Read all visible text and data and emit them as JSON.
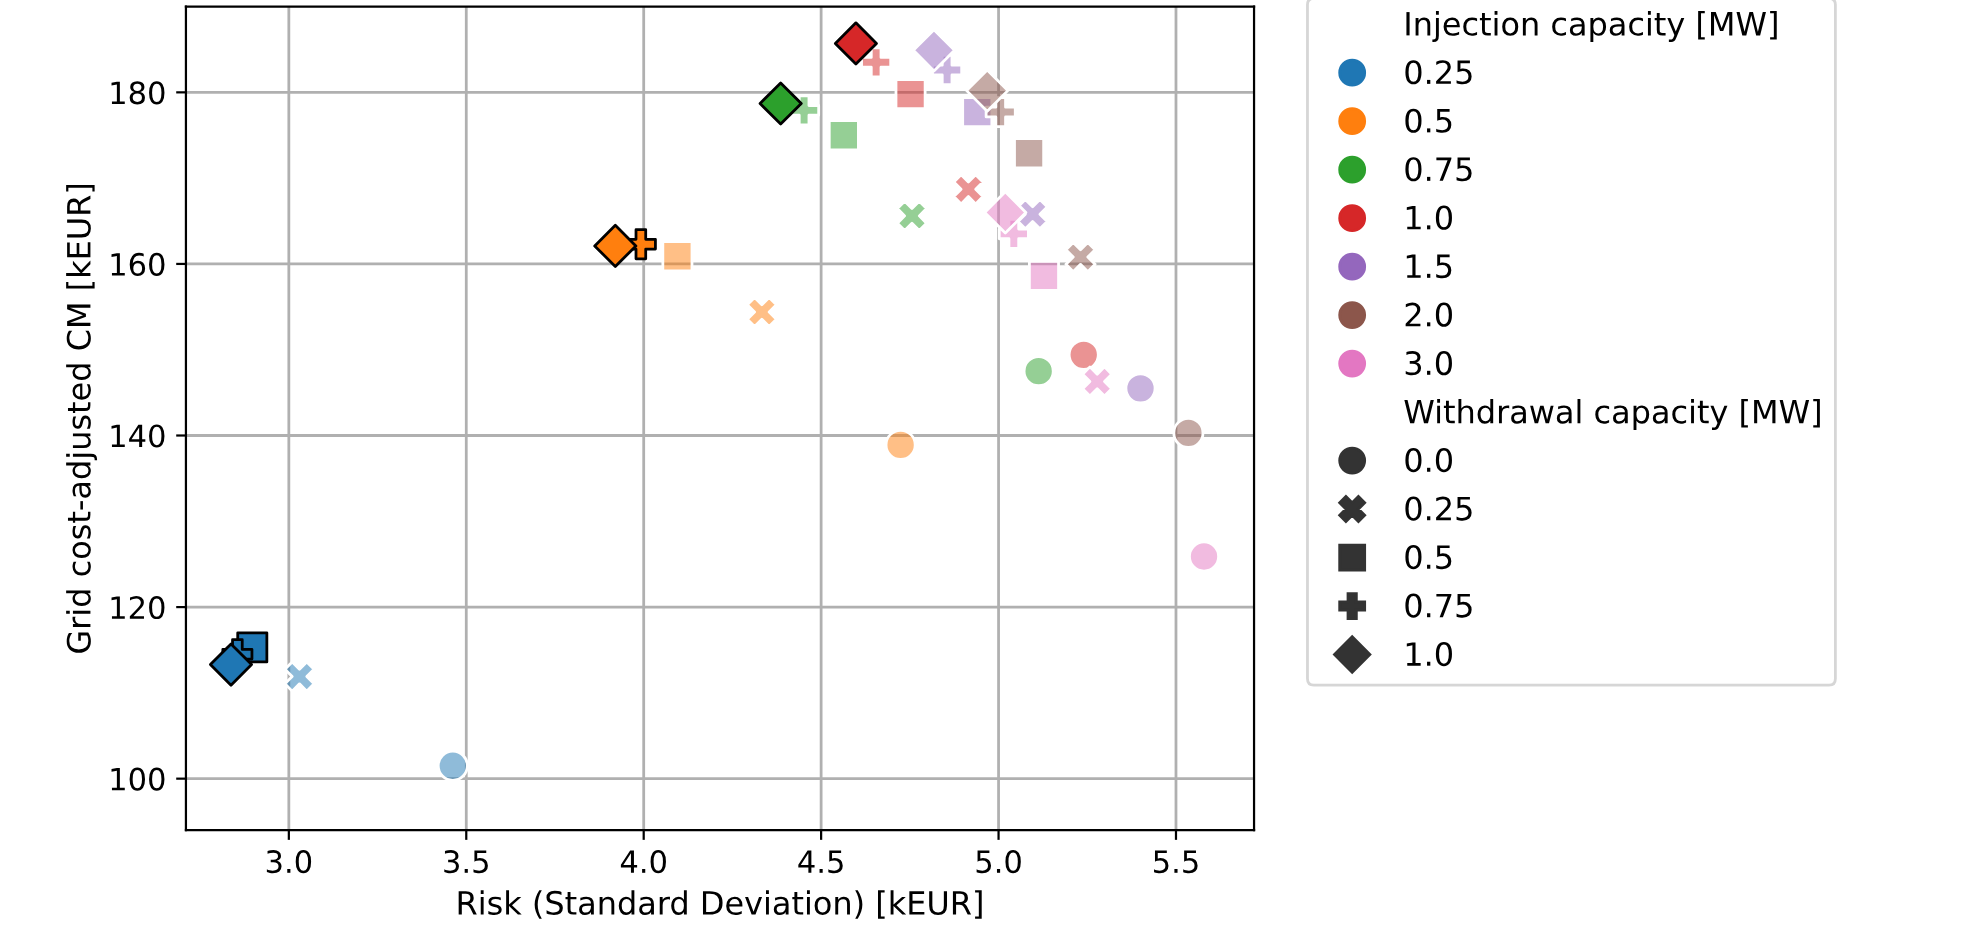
{
  "chart_data": {
    "type": "scatter",
    "xlabel": "Risk (Standard Deviation) [kEUR]",
    "ylabel": "Grid cost-adjusted CM [kEUR]",
    "xlim": [
      2.71,
      5.72
    ],
    "ylim": [
      94,
      190
    ],
    "xticks": [
      {
        "value": 3,
        "label": "3.0"
      },
      3.5,
      {
        "value": 4,
        "label": "4.0"
      },
      4.5,
      {
        "value": 5,
        "label": "5.0"
      },
      5.5
    ],
    "yticks": [
      100,
      120,
      140,
      160,
      180
    ],
    "grid": true,
    "legend": "right",
    "legend_title": [
      "Injection capacity [MW]",
      "Withdrawal capacity [MW]"
    ],
    "series": [
      {
        "name": "0.25",
        "color": "#1f77b4",
        "x": [
          3.462,
          3.03,
          2.897,
          2.855,
          2.837
        ],
        "values": [
          101.5,
          111.9,
          115.3,
          114.5,
          113.3
        ],
        "colors": [
          "#1f77b480",
          "#1f77b480",
          "#1f77b4",
          "#1f77b4",
          "#1f77b4"
        ],
        "marker": [
          "circle",
          "cross",
          "square",
          "plus",
          "diamond"
        ]
      },
      {
        "name": "0.5",
        "color": "#ff7f0e",
        "x": [
          4.724,
          4.333,
          4.095,
          3.992,
          3.92
        ],
        "values": [
          138.9,
          154.4,
          160.9,
          162.3,
          162.1
        ],
        "colors": [
          "#ff7f0e80",
          "#ff7f0e80",
          "#ff7f0e80",
          "#ff7f0e",
          "#ff7f0e"
        ],
        "marker": [
          "circle",
          "cross",
          "square",
          "plus",
          "diamond"
        ]
      },
      {
        "name": "0.75",
        "color": "#2ca02c",
        "x": [
          5.113,
          4.756,
          4.564,
          4.452,
          4.386
        ],
        "values": [
          147.5,
          165.6,
          175.0,
          177.9,
          178.7
        ],
        "colors": [
          "#2ca02c80",
          "#2ca02c80",
          "#2ca02c80",
          "#2ca02c80",
          "#2ca02c"
        ],
        "marker": [
          "circle",
          "cross",
          "square",
          "plus",
          "diamond"
        ]
      },
      {
        "name": "1.0",
        "color": "#d62728",
        "x": [
          5.24,
          4.915,
          4.752,
          4.655,
          4.598
        ],
        "values": [
          149.4,
          168.7,
          179.8,
          183.5,
          185.7
        ],
        "colors": [
          "#d6272880",
          "#d6272880",
          "#d6272880",
          "#d6272880",
          "#d62728"
        ],
        "marker": [
          "circle",
          "cross",
          "square",
          "plus",
          "diamond"
        ]
      },
      {
        "name": "1.5",
        "color": "#9467bd",
        "x": [
          5.4,
          5.096,
          4.94,
          4.855,
          4.818
        ],
        "values": [
          145.5,
          165.8,
          177.7,
          182.6,
          184.9
        ],
        "colors": [
          "#9467bd80",
          "#9467bd80",
          "#9467bd80",
          "#9467bd80",
          "#9467bd80"
        ],
        "marker": [
          "circle",
          "cross",
          "square",
          "plus",
          "diamond"
        ]
      },
      {
        "name": "2.0",
        "color": "#8c564b",
        "x": [
          5.535,
          5.231,
          5.086,
          5.006,
          4.968
        ],
        "values": [
          140.3,
          160.8,
          172.9,
          177.7,
          180.2
        ],
        "colors": [
          "#8c564b80",
          "#8c564b80",
          "#8c564b80",
          "#8c564b80",
          "#8c564b80"
        ],
        "marker": [
          "circle",
          "cross",
          "square",
          "plus",
          "diamond"
        ]
      },
      {
        "name": "3.0",
        "color": "#e377c2",
        "x": [
          5.579,
          5.278,
          5.128,
          5.043,
          5.019
        ],
        "values": [
          125.9,
          146.3,
          158.6,
          163.5,
          166.0
        ],
        "colors": [
          "#e377c280",
          "#e377c280",
          "#e377c280",
          "#e377c280",
          "#e377c280"
        ],
        "marker": [
          "circle",
          "cross",
          "square",
          "plus",
          "diamond"
        ]
      },
      {
        "name": "0.0",
        "color": "#333333",
        "marker": "circle"
      },
      {
        "name": "0.25",
        "color": "#333333",
        "marker": "cross"
      },
      {
        "name": "0.5",
        "color": "#333333",
        "marker": "square"
      },
      {
        "name": "0.75",
        "color": "#333333",
        "marker": "plus"
      },
      {
        "name": "1.0",
        "color": "#333333",
        "marker": "diamond"
      }
    ]
  }
}
